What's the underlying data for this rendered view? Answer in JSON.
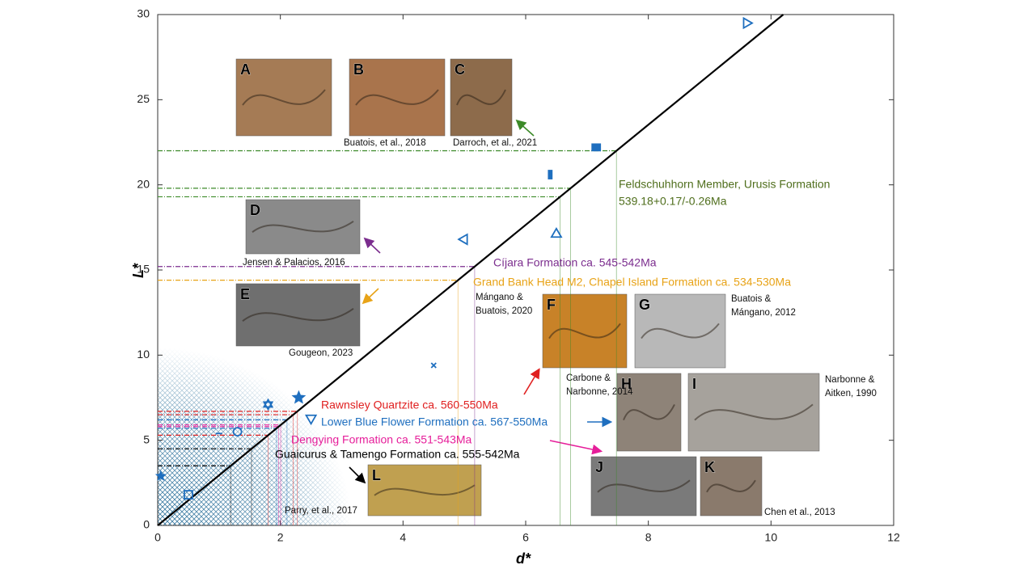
{
  "chart_data": {
    "type": "scatter",
    "xlabel": "d*",
    "ylabel": "L*",
    "xlim": [
      0,
      12
    ],
    "ylim": [
      0,
      30
    ],
    "xticks": [
      0,
      2,
      4,
      6,
      8,
      10,
      12
    ],
    "yticks": [
      0,
      5,
      10,
      15,
      20,
      25,
      30
    ],
    "fit_line": {
      "x": [
        0,
        10.2
      ],
      "y": [
        0,
        30
      ],
      "color": "#000000"
    },
    "series": [
      {
        "color": "#1f6fbf",
        "x": [
          9.6,
          7.15,
          6.4,
          5.0,
          6.5,
          4.5,
          2.3,
          1.8,
          2.5,
          1.3,
          1.0,
          0.05,
          0.5
        ],
        "y": [
          29.5,
          22.2,
          20.6,
          16.8,
          17.1,
          9.4,
          7.5,
          7.1,
          6.3,
          5.5,
          5.4,
          2.9,
          1.8
        ],
        "markers": [
          "tri-right",
          "square",
          "bar",
          "tri-left",
          "tri-up",
          "x",
          "star",
          "hexagram",
          "tri-down",
          "circle",
          "dash",
          "star-filled",
          "square-open"
        ]
      }
    ],
    "reference_lines": [
      {
        "y": 22.0,
        "color": "#3c8a28"
      },
      {
        "y": 19.8,
        "color": "#3c8a28"
      },
      {
        "y": 19.3,
        "color": "#3c8a28"
      },
      {
        "y": 15.2,
        "color": "#7b2d8e"
      },
      {
        "y": 14.4,
        "color": "#e8a317"
      },
      {
        "y": 6.7,
        "color": "#e02020"
      },
      {
        "y": 6.5,
        "color": "#e02020"
      },
      {
        "y": 5.3,
        "color": "#e02020"
      },
      {
        "y": 6.2,
        "color": "#1f6fbf"
      },
      {
        "y": 5.7,
        "color": "#1f6fbf"
      },
      {
        "y": 5.9,
        "color": "#e61e9a"
      },
      {
        "y": 5.8,
        "color": "#e61e9a"
      },
      {
        "y": 4.5,
        "color": "#000000"
      },
      {
        "y": 3.5,
        "color": "#000000"
      }
    ],
    "annotations": [
      {
        "text": "Feldschuhhorn Member, Urusis Formation",
        "color": "#4f6e1c"
      },
      {
        "text": "539.18+0.17/-0.26Ma",
        "color": "#4f6e1c"
      },
      {
        "text": "Cíjara Formation ca. 545-542Ma",
        "color": "#7b2d8e"
      },
      {
        "text": "Grand Bank Head M2, Chapel Island Formation  ca. 534-530Ma",
        "color": "#e8a317"
      },
      {
        "text": "Rawnsley Quartzite ca. 560-550Ma",
        "color": "#e02020"
      },
      {
        "text": "Lower Blue Flower Formation ca. 567-550Ma",
        "color": "#1f6fbf"
      },
      {
        "text": "Dengying Formation ca. 551-543Ma",
        "color": "#e61e9a"
      },
      {
        "text": "Guaicurus & Tamengo Formation ca. 555-542Ma",
        "color": "#000000"
      }
    ],
    "panels": [
      "A",
      "B",
      "C",
      "D",
      "E",
      "F",
      "G",
      "H",
      "I",
      "J",
      "K",
      "L"
    ],
    "citations": [
      [
        "Buatois, et al., 2018"
      ],
      [
        "Darroch, et al., 2021"
      ],
      [
        "Jensen & Palacios, 2016"
      ],
      [
        "Gougeon, 2023"
      ],
      [
        "Mángano &",
        "Buatois, 2020"
      ],
      [
        "Buatois &",
        "Mángano, 2012"
      ],
      [
        "Carbone &",
        "Narbonne, 2014"
      ],
      [
        "Narbonne &",
        "Aitken, 1990"
      ],
      [
        "Chen et al., 2013"
      ],
      [
        "Parry, et al., 2017"
      ]
    ]
  }
}
